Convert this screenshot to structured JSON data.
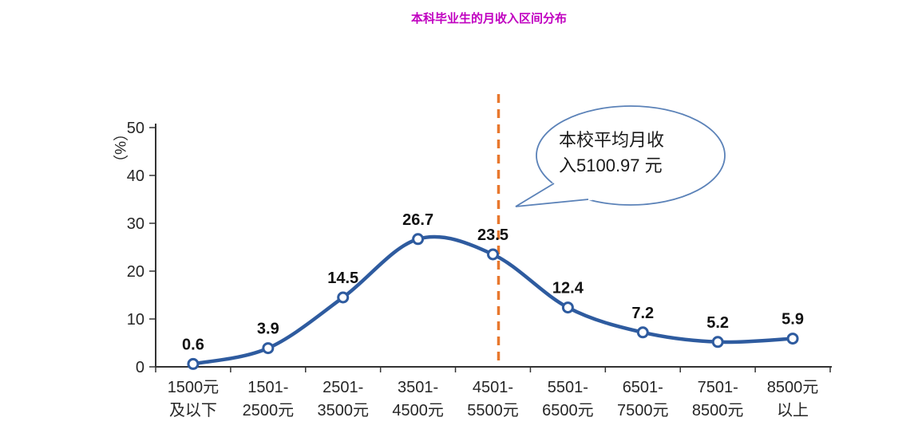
{
  "title": "本科毕业生的月收入区间分布",
  "chart_data": {
    "type": "line",
    "title": "本科毕业生的月收入区间分布",
    "ylabel": "（%）",
    "xlabel": "",
    "ylim": [
      0,
      50
    ],
    "yticks": [
      0,
      10,
      20,
      30,
      40,
      50
    ],
    "grid": false,
    "legend": false,
    "categories": [
      [
        "1500元",
        "及以下"
      ],
      [
        "1501-",
        "2500元"
      ],
      [
        "2501-",
        "3500元"
      ],
      [
        "3501-",
        "4500元"
      ],
      [
        "4501-",
        "5500元"
      ],
      [
        "5501-",
        "6500元"
      ],
      [
        "6501-",
        "7500元"
      ],
      [
        "7501-",
        "8500元"
      ],
      [
        "8500元",
        "以上"
      ]
    ],
    "values": [
      0.6,
      3.9,
      14.5,
      26.7,
      23.5,
      12.4,
      7.2,
      5.2,
      5.9
    ],
    "annotation": {
      "text_lines": [
        "本校平均月收",
        "入5100.97 元"
      ],
      "full_text": "本校平均月收入5100.97元",
      "reference_line_category": "4501-5500元"
    },
    "colors": {
      "line": "#2E5B9F",
      "marker_fill": "#FFFFFF",
      "dashed_line": "#E8782E",
      "callout_border": "#5B82B8",
      "title": "#C000C0",
      "axis": "#333333",
      "text": "#262626",
      "data_label": "#111111"
    }
  }
}
